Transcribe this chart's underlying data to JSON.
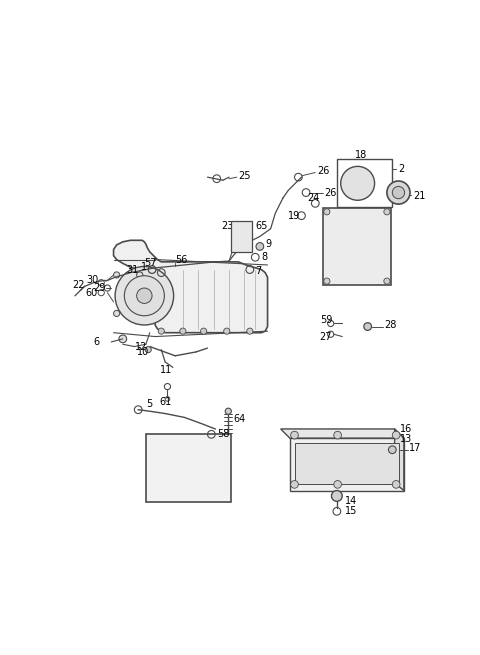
{
  "bg_color": "#ffffff",
  "lc": "#4a4a4a",
  "figsize": [
    4.8,
    6.55
  ],
  "dpi": 100
}
